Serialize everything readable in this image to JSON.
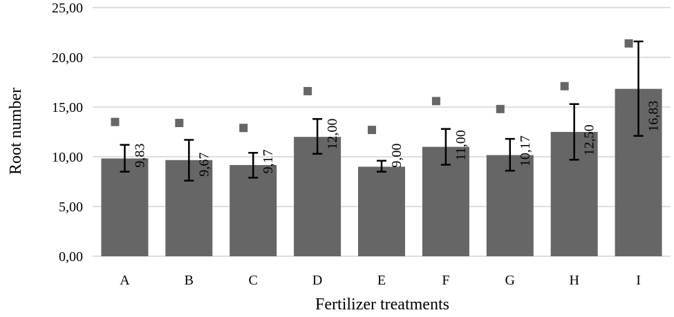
{
  "chart_data": {
    "type": "bar",
    "title": "",
    "xlabel": "Fertilizer treatments",
    "ylabel": "Root number",
    "ylim": [
      0,
      25
    ],
    "yticks": [
      "0,00",
      "5,00",
      "10,00",
      "15,00",
      "20,00",
      "25,00"
    ],
    "ytick_values": [
      0,
      5,
      10,
      15,
      20,
      25
    ],
    "grid": true,
    "categories": [
      "A",
      "B",
      "C",
      "D",
      "E",
      "F",
      "G",
      "H",
      "I"
    ],
    "values": [
      9.83,
      9.67,
      9.17,
      12.0,
      9.0,
      11.0,
      10.17,
      12.5,
      16.83
    ],
    "value_labels": [
      "9,83",
      "9,67",
      "9,17",
      "12,00",
      "9,00",
      "11,00",
      "10,17",
      "12,50",
      "16,83"
    ],
    "error_low": [
      8.5,
      7.6,
      7.9,
      10.3,
      8.5,
      9.2,
      8.6,
      9.7,
      12.1
    ],
    "error_high": [
      11.2,
      11.7,
      10.4,
      13.8,
      9.6,
      12.8,
      11.8,
      15.3,
      21.6
    ],
    "marker_values": [
      13.5,
      13.4,
      12.9,
      16.6,
      12.7,
      15.6,
      14.8,
      17.1,
      21.4
    ],
    "colors": {
      "bar": "#666666",
      "grid": "#d4d4d4",
      "error": "#000000"
    }
  }
}
